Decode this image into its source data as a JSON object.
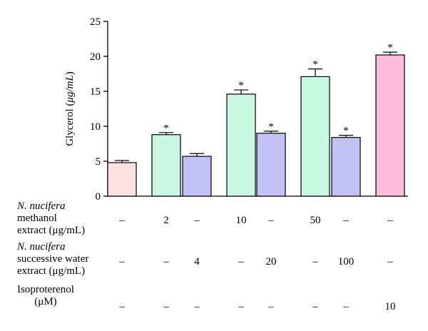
{
  "chart_data": {
    "type": "bar",
    "ylabel_prefix": "Glycerol (",
    "ylabel_unit": "μg/mL",
    "ylabel_suffix": ")",
    "ylim": [
      0,
      25
    ],
    "yticks": [
      0,
      5,
      10,
      15,
      20,
      25
    ],
    "grid": false,
    "legend": "none",
    "significance_marker": "*",
    "bars": [
      {
        "value": 4.8,
        "error": 0.3,
        "color": "#fde0e0",
        "significant": false
      },
      {
        "value": 8.8,
        "error": 0.3,
        "color": "#c8f7e2",
        "significant": true
      },
      {
        "value": 5.7,
        "error": 0.4,
        "color": "#c2c2f7",
        "significant": false
      },
      {
        "value": 14.6,
        "error": 0.6,
        "color": "#c8f7e2",
        "significant": true
      },
      {
        "value": 9.0,
        "error": 0.3,
        "color": "#c2c2f7",
        "significant": true
      },
      {
        "value": 17.1,
        "error": 1.1,
        "color": "#c8f7e2",
        "significant": true
      },
      {
        "value": 8.4,
        "error": 0.3,
        "color": "#c2c2f7",
        "significant": true
      },
      {
        "value": 20.2,
        "error": 0.4,
        "color": "#fdbcd9",
        "significant": true
      }
    ]
  },
  "treatment_table": {
    "rows": [
      {
        "label_lines": [
          {
            "text": "N. nucifera",
            "italic": true
          },
          {
            "text": "methanol",
            "italic": false
          },
          {
            "text": "extract (μg/mL)",
            "italic": false
          }
        ],
        "values": [
          "–",
          "2",
          "–",
          "10",
          "–",
          "50",
          "–",
          "–"
        ]
      },
      {
        "label_lines": [
          {
            "text": "N. nucifera",
            "italic": true
          },
          {
            "text": "successive water",
            "italic": false
          },
          {
            "text": "extract (μg/mL)",
            "italic": false
          }
        ],
        "values": [
          "–",
          "–",
          "4",
          "–",
          "20",
          "–",
          "100",
          "–"
        ]
      },
      {
        "label_lines": [
          {
            "text": "Isoproterenol",
            "italic": false
          },
          {
            "text": "(μM)",
            "italic": false
          }
        ],
        "values": [
          "–",
          "–",
          "–",
          "–",
          "–",
          "–",
          "–",
          "10"
        ]
      }
    ]
  }
}
